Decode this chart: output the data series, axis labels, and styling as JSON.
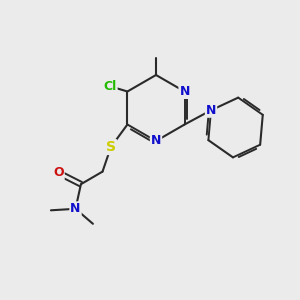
{
  "background_color": "#ebebeb",
  "bond_color": "#2a2a2a",
  "atom_colors": {
    "N": "#1010cc",
    "Cl": "#22bb00",
    "S": "#cccc00",
    "O": "#cc1111",
    "C": "#2a2a2a"
  },
  "figsize": [
    3.0,
    3.0
  ],
  "dpi": 100
}
